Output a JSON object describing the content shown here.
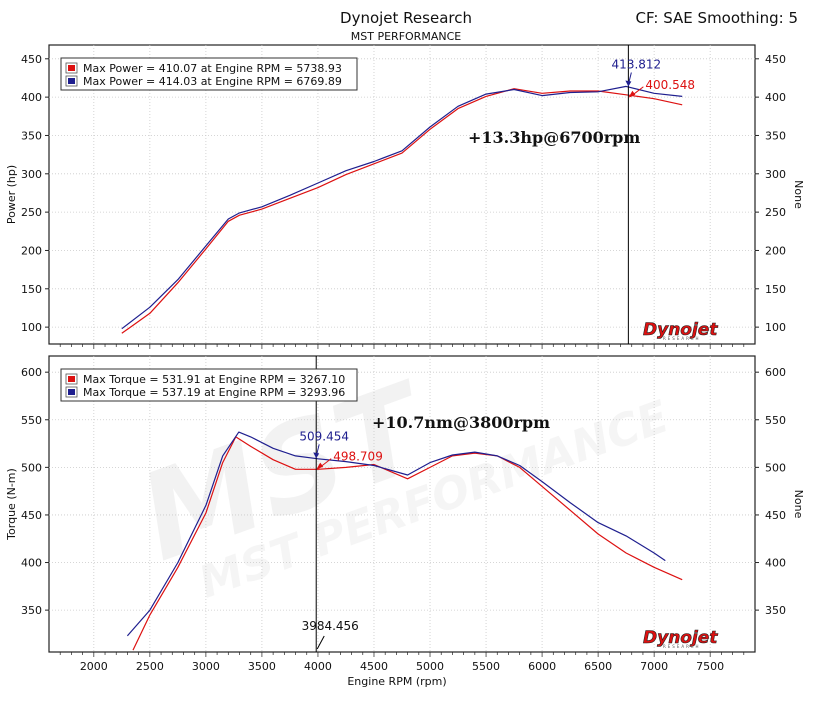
{
  "header": {
    "title": "Dynojet Research",
    "subtitle": "MST PERFORMANCE",
    "settings": "CF: SAE Smoothing: 5"
  },
  "watermark": {
    "main": "MST",
    "sub": "MST PERFORMANCE"
  },
  "logo": {
    "text": "Dynojet",
    "sub": "RESEARCH"
  },
  "colors": {
    "run1": "#dd1111",
    "run2": "#1f1f8f",
    "cursor": "#000000"
  },
  "chart_data": [
    {
      "type": "line",
      "ylabel": "Power (hp)",
      "ylabel_right": "None",
      "xlim": [
        1600,
        7900
      ],
      "ylim": [
        78,
        468
      ],
      "yticks": [
        100,
        150,
        200,
        250,
        300,
        350,
        400,
        450
      ],
      "grid": true,
      "legend": [
        {
          "text": "Max Power = 410.07 at Engine RPM = 5738.93",
          "color": "#dd1111"
        },
        {
          "text": "Max Power = 414.03 at Engine RPM = 6769.89",
          "color": "#1f1f8f"
        }
      ],
      "annotation": "+13.3hp@6700rpm",
      "cursor": {
        "x": 6770,
        "labels": [
          {
            "text": "413.812",
            "y": 413.8,
            "color": "#1f1f8f",
            "pos": "above"
          },
          {
            "text": "400.548",
            "y": 400.5,
            "color": "#dd1111",
            "pos": "right"
          }
        ]
      },
      "series": [
        {
          "color": "#dd1111",
          "x": [
            2250,
            2500,
            2750,
            3000,
            3200,
            3300,
            3500,
            3750,
            4000,
            4250,
            4500,
            4750,
            5000,
            5250,
            5500,
            5750,
            6000,
            6250,
            6500,
            6750,
            7000,
            7250
          ],
          "y": [
            92,
            118,
            158,
            202,
            238,
            246,
            254,
            268,
            282,
            299,
            313,
            327,
            358,
            385,
            401,
            411,
            405,
            408,
            408,
            403,
            398,
            390
          ]
        },
        {
          "color": "#1f1f8f",
          "x": [
            2250,
            2500,
            2750,
            3000,
            3200,
            3300,
            3500,
            3750,
            4000,
            4250,
            4500,
            4750,
            5000,
            5250,
            5500,
            5750,
            6000,
            6250,
            6500,
            6750,
            7000,
            7250
          ],
          "y": [
            98,
            126,
            162,
            206,
            241,
            249,
            257,
            272,
            288,
            304,
            316,
            330,
            361,
            388,
            404,
            410,
            402,
            406,
            407,
            414,
            405,
            401
          ]
        }
      ]
    },
    {
      "type": "line",
      "ylabel": "Torque (N-m)",
      "ylabel_right": "None",
      "xlabel": "Engine RPM (rpm)",
      "xlim": [
        1600,
        7900
      ],
      "ylim": [
        306,
        617
      ],
      "yticks": [
        350,
        400,
        450,
        500,
        550,
        600
      ],
      "xticks": [
        2000,
        2500,
        3000,
        3500,
        4000,
        4500,
        5000,
        5500,
        6000,
        6500,
        7000,
        7500
      ],
      "grid": true,
      "legend": [
        {
          "text": "Max Torque = 531.91 at Engine RPM = 3267.10",
          "color": "#dd1111"
        },
        {
          "text": "Max Torque = 537.19 at Engine RPM = 3293.96",
          "color": "#1f1f8f"
        }
      ],
      "annotation": "+10.7nm@3800rpm",
      "cursor": {
        "x": 3984.456,
        "value_label": "3984.456",
        "labels": [
          {
            "text": "509.454",
            "y": 509.5,
            "color": "#1f1f8f",
            "pos": "above"
          },
          {
            "text": "498.709",
            "y": 498.7,
            "color": "#dd1111",
            "pos": "right"
          }
        ]
      },
      "series": [
        {
          "color": "#dd1111",
          "x": [
            2350,
            2500,
            2750,
            3000,
            3150,
            3267,
            3400,
            3600,
            3800,
            4000,
            4250,
            4500,
            4800,
            5000,
            5200,
            5400,
            5600,
            5800,
            6000,
            6250,
            6500,
            6750,
            7000,
            7250
          ],
          "y": [
            308,
            345,
            395,
            452,
            505,
            532,
            522,
            508,
            498,
            498,
            500,
            503,
            488,
            500,
            512,
            515,
            512,
            500,
            480,
            455,
            430,
            410,
            395,
            382
          ]
        },
        {
          "color": "#1f1f8f",
          "x": [
            2300,
            2500,
            2750,
            3000,
            3150,
            3294,
            3400,
            3600,
            3800,
            4000,
            4250,
            4500,
            4800,
            5000,
            5200,
            5400,
            5600,
            5800,
            6000,
            6250,
            6500,
            6750,
            7000,
            7100
          ],
          "y": [
            323,
            350,
            400,
            460,
            512,
            537,
            532,
            520,
            512,
            509,
            506,
            502,
            492,
            505,
            513,
            516,
            512,
            502,
            485,
            463,
            442,
            428,
            410,
            402
          ]
        }
      ]
    }
  ]
}
